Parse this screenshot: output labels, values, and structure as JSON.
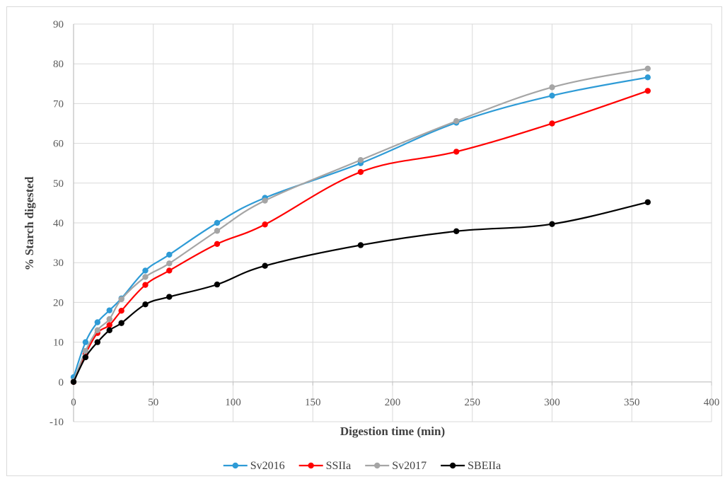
{
  "chart_data": {
    "type": "line",
    "title": "",
    "xlabel": "Digestion time (min)",
    "ylabel": "% Starch digested",
    "xlim": [
      0,
      400
    ],
    "ylim": [
      -10,
      90
    ],
    "xticks": [
      0,
      50,
      100,
      150,
      200,
      250,
      300,
      350,
      400
    ],
    "yticks": [
      -10,
      0,
      10,
      20,
      30,
      40,
      50,
      60,
      70,
      80,
      90
    ],
    "grid": true,
    "legend_position": "bottom",
    "x": [
      0,
      7.5,
      15,
      22.5,
      30,
      45,
      60,
      90,
      120,
      180,
      240,
      300,
      360
    ],
    "series": [
      {
        "name": "Sv2016",
        "color": "#2e9bd6",
        "values": [
          1.2,
          10,
          15,
          18,
          21,
          28,
          32,
          40,
          46.3,
          55,
          65.2,
          72,
          76.6
        ]
      },
      {
        "name": "SSIIa",
        "color": "#ff0000",
        "values": [
          0,
          7,
          12.3,
          14.3,
          17.9,
          24.4,
          28,
          34.7,
          39.6,
          52.8,
          57.9,
          65,
          73.2
        ]
      },
      {
        "name": "Sv2017",
        "color": "#a5a5a5",
        "values": [
          0.2,
          7.8,
          13,
          15.8,
          20.8,
          26.4,
          29.8,
          38,
          45.6,
          55.8,
          65.6,
          74.1,
          78.8
        ]
      },
      {
        "name": "SBEIIa",
        "color": "#000000",
        "values": [
          0,
          6.2,
          10,
          13,
          14.8,
          19.5,
          21.4,
          24.5,
          29.2,
          34.4,
          37.9,
          39.7,
          45.2
        ]
      }
    ]
  }
}
